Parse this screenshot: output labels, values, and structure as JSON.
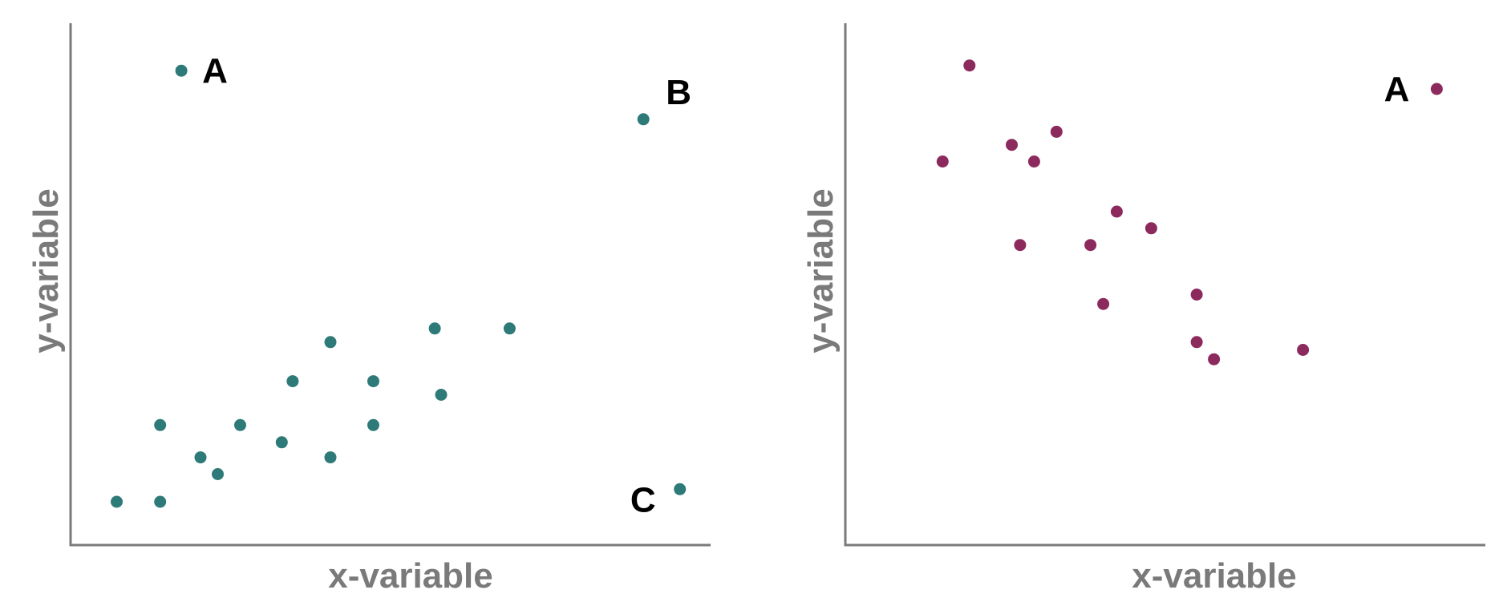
{
  "chart_data": [
    {
      "type": "scatter",
      "xlabel": "x-variable",
      "ylabel": "y-variable",
      "color": "#2e7a78",
      "xlim": [
        0,
        100
      ],
      "ylim": [
        0,
        100
      ],
      "grid": false,
      "points": [
        {
          "x": 7.2,
          "y": 8.3,
          "label": ""
        },
        {
          "x": 14.0,
          "y": 8.3,
          "label": ""
        },
        {
          "x": 14.0,
          "y": 23.0,
          "label": ""
        },
        {
          "x": 20.3,
          "y": 16.8,
          "label": ""
        },
        {
          "x": 23.0,
          "y": 13.6,
          "label": ""
        },
        {
          "x": 26.5,
          "y": 23.0,
          "label": ""
        },
        {
          "x": 33.0,
          "y": 19.7,
          "label": ""
        },
        {
          "x": 34.7,
          "y": 31.4,
          "label": ""
        },
        {
          "x": 40.6,
          "y": 16.8,
          "label": ""
        },
        {
          "x": 40.6,
          "y": 38.9,
          "label": ""
        },
        {
          "x": 47.3,
          "y": 31.4,
          "label": ""
        },
        {
          "x": 47.3,
          "y": 23.0,
          "label": ""
        },
        {
          "x": 56.9,
          "y": 41.5,
          "label": ""
        },
        {
          "x": 57.9,
          "y": 28.8,
          "label": ""
        },
        {
          "x": 68.6,
          "y": 41.5,
          "label": ""
        },
        {
          "x": 17.3,
          "y": 90.9,
          "label": "A"
        },
        {
          "x": 89.5,
          "y": 81.6,
          "label": "B"
        },
        {
          "x": 95.2,
          "y": 10.7,
          "label": "C"
        }
      ]
    },
    {
      "type": "scatter",
      "xlabel": "x-variable",
      "ylabel": "y-variable",
      "color": "#8c2a5e",
      "xlim": [
        0,
        100
      ],
      "ylim": [
        0,
        100
      ],
      "grid": false,
      "points": [
        {
          "x": 15.2,
          "y": 73.5,
          "label": ""
        },
        {
          "x": 19.4,
          "y": 91.9,
          "label": ""
        },
        {
          "x": 26.0,
          "y": 76.7,
          "label": ""
        },
        {
          "x": 29.5,
          "y": 73.5,
          "label": ""
        },
        {
          "x": 33.0,
          "y": 79.2,
          "label": ""
        },
        {
          "x": 27.3,
          "y": 57.5,
          "label": ""
        },
        {
          "x": 38.3,
          "y": 57.5,
          "label": ""
        },
        {
          "x": 42.4,
          "y": 63.9,
          "label": ""
        },
        {
          "x": 47.8,
          "y": 60.7,
          "label": ""
        },
        {
          "x": 40.3,
          "y": 46.2,
          "label": ""
        },
        {
          "x": 54.9,
          "y": 48.0,
          "label": ""
        },
        {
          "x": 54.9,
          "y": 38.9,
          "label": ""
        },
        {
          "x": 57.6,
          "y": 35.6,
          "label": ""
        },
        {
          "x": 71.5,
          "y": 37.4,
          "label": ""
        },
        {
          "x": 92.4,
          "y": 87.4,
          "label": "A"
        }
      ]
    }
  ]
}
